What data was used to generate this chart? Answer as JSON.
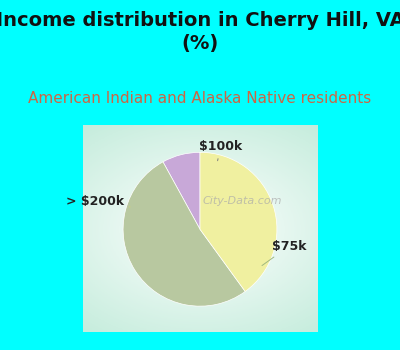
{
  "title": "Income distribution in Cherry Hill, VA\n(%)",
  "subtitle": "American Indian and Alaska Native residents",
  "title_fontsize": 14,
  "subtitle_fontsize": 11,
  "title_color": "#111111",
  "subtitle_color": "#cc6644",
  "background_color": "#00ffff",
  "slices": [
    {
      "label": "$100k",
      "value": 8,
      "color": "#c8a8d8"
    },
    {
      "label": "$75k",
      "value": 52,
      "color": "#b8c8a0"
    },
    {
      "label": "> $200k",
      "value": 40,
      "color": "#f0f0a0"
    }
  ],
  "label_fontsize": 9,
  "watermark": "City-Data.com",
  "startangle": 90,
  "label_positions": {
    "$100k": [
      0.22,
      0.88,
      0.05,
      0.72
    ],
    "$75k": [
      0.82,
      0.32,
      0.62,
      0.52
    ],
    "> $200k": [
      -0.62,
      0.32,
      -0.88,
      0.42
    ]
  }
}
